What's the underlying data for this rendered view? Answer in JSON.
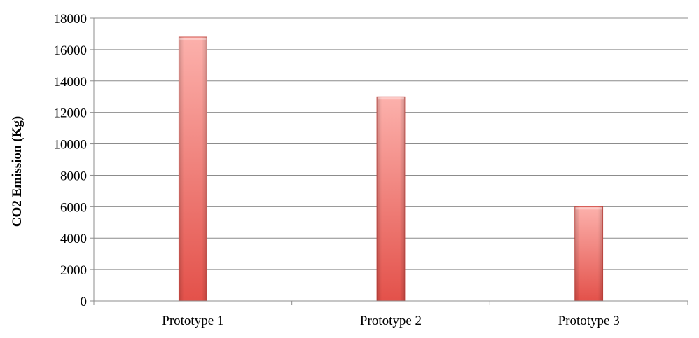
{
  "chart_data": {
    "type": "bar",
    "title": "",
    "xlabel": "",
    "ylabel": "CO2 Emission (Kg)",
    "categories": [
      "Prototype 1",
      "Prototype 2",
      "Prototype 3"
    ],
    "values": [
      16800,
      13000,
      6000
    ],
    "ylim": [
      0,
      18000
    ],
    "yticks": [
      0,
      2000,
      4000,
      6000,
      8000,
      10000,
      12000,
      14000,
      16000,
      18000
    ],
    "ytick_labels": [
      "0",
      "2000",
      "4000",
      "6000",
      "8000",
      "10000",
      "12000",
      "14000",
      "16000",
      "18000"
    ],
    "grid": true,
    "legend": "none",
    "colors": {
      "bar_light": "#fcb1ac",
      "bar_dark": "#e3514a",
      "bar_edge": "#c9423b",
      "grid": "#8c8c8c",
      "axis": "#8c8c8c"
    }
  }
}
